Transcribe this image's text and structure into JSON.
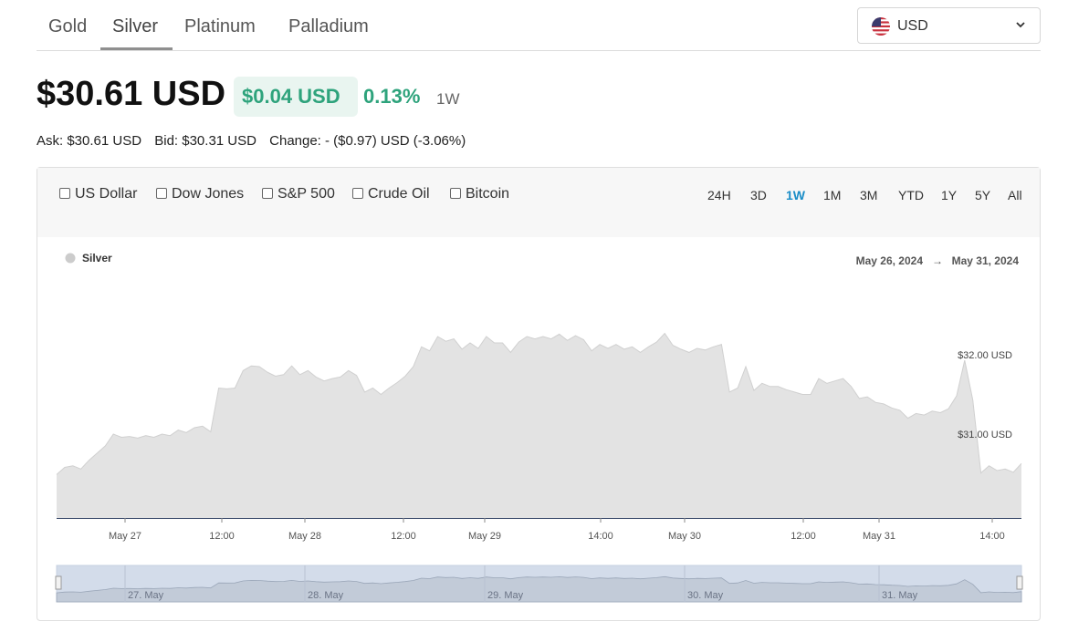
{
  "tabs": [
    {
      "label": "Gold"
    },
    {
      "label": "Silver"
    },
    {
      "label": "Platinum"
    },
    {
      "label": "Palladium"
    }
  ],
  "active_tab": "Silver",
  "currency": {
    "label": "USD",
    "icon": "us-flag-icon"
  },
  "price": {
    "value": "$30.61 USD",
    "change": "$0.04 USD",
    "change_pct": "0.13%",
    "period": "1W"
  },
  "details": {
    "ask": "Ask: $30.61 USD",
    "bid": "Bid: $30.31 USD",
    "change": "Change: - ($0.97) USD (-3.06%)"
  },
  "compare": [
    {
      "label": "US Dollar"
    },
    {
      "label": "Dow Jones"
    },
    {
      "label": "S&P 500"
    },
    {
      "label": "Crude Oil"
    },
    {
      "label": "Bitcoin"
    }
  ],
  "ranges": [
    {
      "label": "24H"
    },
    {
      "label": "3D"
    },
    {
      "label": "1W"
    },
    {
      "label": "1M"
    },
    {
      "label": "3M"
    },
    {
      "label": "YTD"
    },
    {
      "label": "1Y"
    },
    {
      "label": "5Y"
    },
    {
      "label": "All"
    }
  ],
  "active_range": "1W",
  "colors": {
    "up": "#2ea37c",
    "active_range": "#1a8dc7",
    "area_fill": "#e3e3e3",
    "navigator_fill": "#d3dcea"
  },
  "chart_data": {
    "type": "area",
    "legend": {
      "label": "Silver",
      "placement": "top-left"
    },
    "date_range": {
      "start": "May 26, 2024",
      "arrow": "→",
      "end": "May 31, 2024"
    },
    "x_ticks": [
      "May 27",
      "12:00",
      "May 28",
      "12:00",
      "May 29",
      "14:00",
      "May 30",
      "12:00",
      "May 31",
      "14:00"
    ],
    "y_ticks": [
      {
        "value": 32.0,
        "label": "$32.00 USD"
      },
      {
        "value": 31.0,
        "label": "$31.00 USD"
      }
    ],
    "navigator_labels": [
      "27. May",
      "28. May",
      "29. May",
      "30. May",
      "31. May"
    ],
    "series": [
      {
        "name": "Silver",
        "values": [
          30.49,
          30.58,
          30.6,
          30.56,
          30.67,
          30.76,
          30.85,
          31.0,
          30.96,
          30.97,
          30.95,
          30.98,
          30.96,
          31.0,
          30.98,
          31.05,
          31.02,
          31.08,
          31.1,
          31.03,
          31.58,
          31.57,
          31.58,
          31.8,
          31.86,
          31.85,
          31.78,
          31.73,
          31.75,
          31.86,
          31.75,
          31.8,
          31.72,
          31.67,
          31.7,
          31.72,
          31.8,
          31.74,
          31.53,
          31.58,
          31.5,
          31.58,
          31.65,
          31.73,
          31.85,
          32.1,
          32.05,
          32.23,
          32.17,
          32.2,
          32.07,
          32.15,
          32.08,
          32.23,
          32.15,
          32.15,
          32.03,
          32.16,
          32.23,
          32.2,
          32.23,
          32.2,
          32.26,
          32.18,
          32.24,
          32.19,
          32.05,
          32.13,
          32.08,
          32.13,
          32.07,
          32.1,
          32.03,
          32.1,
          32.16,
          32.27,
          32.12,
          32.07,
          32.03,
          32.08,
          32.06,
          32.1,
          32.13,
          31.53,
          31.58,
          31.85,
          31.55,
          31.64,
          31.6,
          31.6,
          31.56,
          31.53,
          31.5,
          31.5,
          31.7,
          31.64,
          31.67,
          31.7,
          31.6,
          31.45,
          31.47,
          31.4,
          31.38,
          31.33,
          31.3,
          31.2,
          31.26,
          31.24,
          31.29,
          31.27,
          31.32,
          31.48,
          31.93,
          31.43,
          30.51,
          30.6,
          30.54,
          30.56,
          30.52,
          30.63
        ]
      }
    ],
    "navigator": true,
    "grid": false
  }
}
